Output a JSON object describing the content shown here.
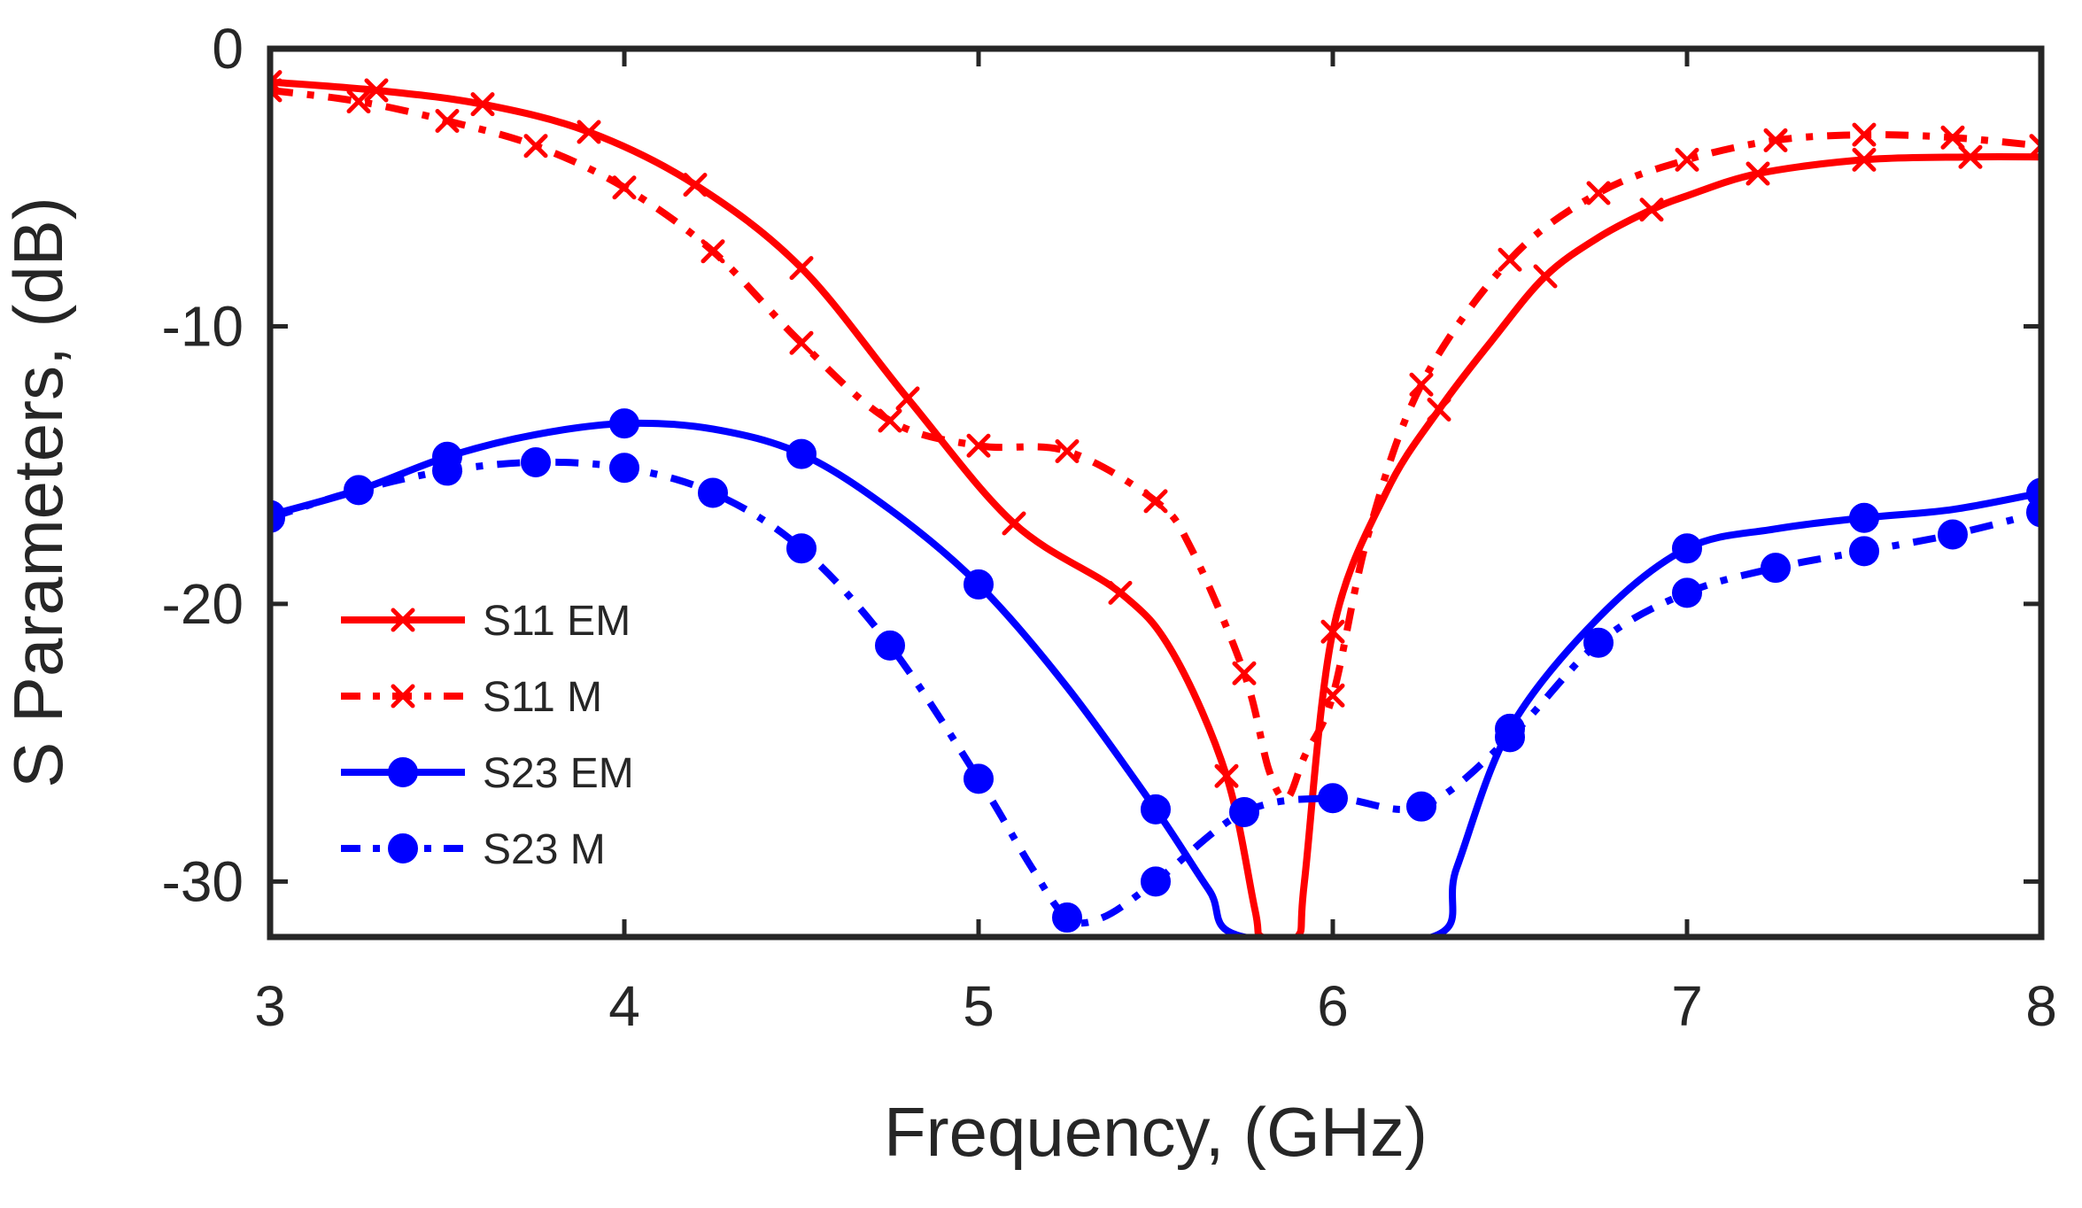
{
  "chart_data": {
    "type": "line",
    "xlabel": "Frequency, (GHz)",
    "ylabel": "S Parameters, (dB)",
    "xlim": [
      3,
      8
    ],
    "ylim": [
      -32,
      0
    ],
    "xticks": [
      3,
      4,
      5,
      6,
      7,
      8
    ],
    "yticks": [
      0,
      -10,
      -20,
      -30
    ],
    "grid": false,
    "legend_position": "lower-left",
    "colors": {
      "S11": "#ff0000",
      "S23": "#0000ff",
      "axis": "#262626"
    },
    "series": [
      {
        "name": "S11 EM",
        "color": "#ff0000",
        "line": "solid",
        "marker": "x",
        "curve": [
          [
            3.0,
            -1.2
          ],
          [
            3.3,
            -1.5
          ],
          [
            3.6,
            -2.0
          ],
          [
            3.9,
            -3.0
          ],
          [
            4.2,
            -4.9
          ],
          [
            4.5,
            -7.9
          ],
          [
            4.8,
            -12.6
          ],
          [
            5.1,
            -17.1
          ],
          [
            5.4,
            -19.6
          ],
          [
            5.55,
            -21.8
          ],
          [
            5.7,
            -26.2
          ],
          [
            5.78,
            -31.0
          ],
          [
            5.8,
            -32.0
          ],
          [
            5.9,
            -32.0
          ],
          [
            5.92,
            -30.0
          ],
          [
            6.0,
            -21.0
          ],
          [
            6.15,
            -16.0
          ],
          [
            6.3,
            -13.0
          ],
          [
            6.45,
            -10.5
          ],
          [
            6.6,
            -8.2
          ],
          [
            6.75,
            -6.8
          ],
          [
            6.9,
            -5.8
          ],
          [
            7.0,
            -5.3
          ],
          [
            7.2,
            -4.5
          ],
          [
            7.5,
            -4.0
          ],
          [
            7.8,
            -3.9
          ],
          [
            8.0,
            -3.9
          ]
        ],
        "markers": [
          [
            3.0,
            -1.2
          ],
          [
            3.3,
            -1.5
          ],
          [
            3.6,
            -2.0
          ],
          [
            3.9,
            -3.0
          ],
          [
            4.2,
            -4.9
          ],
          [
            4.5,
            -7.9
          ],
          [
            4.8,
            -12.6
          ],
          [
            5.1,
            -17.1
          ],
          [
            5.4,
            -19.6
          ],
          [
            5.7,
            -26.2
          ],
          [
            6.0,
            -21.0
          ],
          [
            6.3,
            -13.0
          ],
          [
            6.6,
            -8.2
          ],
          [
            6.9,
            -5.8
          ],
          [
            7.2,
            -4.5
          ],
          [
            7.5,
            -4.0
          ],
          [
            7.8,
            -3.9
          ]
        ]
      },
      {
        "name": "S11 M",
        "color": "#ff0000",
        "line": "dashdot",
        "marker": "x",
        "curve": [
          [
            3.0,
            -1.5
          ],
          [
            3.25,
            -1.9
          ],
          [
            3.5,
            -2.6
          ],
          [
            3.75,
            -3.5
          ],
          [
            4.0,
            -5.0
          ],
          [
            4.25,
            -7.3
          ],
          [
            4.5,
            -10.6
          ],
          [
            4.75,
            -13.4
          ],
          [
            5.0,
            -14.3
          ],
          [
            5.25,
            -14.5
          ],
          [
            5.5,
            -16.3
          ],
          [
            5.6,
            -18.0
          ],
          [
            5.75,
            -22.5
          ],
          [
            5.82,
            -26.0
          ],
          [
            5.87,
            -27.0
          ],
          [
            5.92,
            -25.5
          ],
          [
            6.0,
            -23.3
          ],
          [
            6.1,
            -17.5
          ],
          [
            6.25,
            -12.1
          ],
          [
            6.5,
            -7.6
          ],
          [
            6.75,
            -5.2
          ],
          [
            7.0,
            -4.0
          ],
          [
            7.25,
            -3.3
          ],
          [
            7.5,
            -3.1
          ],
          [
            7.75,
            -3.2
          ],
          [
            8.0,
            -3.5
          ]
        ],
        "markers": [
          [
            3.0,
            -1.5
          ],
          [
            3.25,
            -1.9
          ],
          [
            3.5,
            -2.6
          ],
          [
            3.75,
            -3.5
          ],
          [
            4.0,
            -5.0
          ],
          [
            4.25,
            -7.3
          ],
          [
            4.5,
            -10.6
          ],
          [
            4.75,
            -13.4
          ],
          [
            5.0,
            -14.3
          ],
          [
            5.25,
            -14.5
          ],
          [
            5.5,
            -16.3
          ],
          [
            5.75,
            -22.5
          ],
          [
            6.0,
            -23.3
          ],
          [
            6.25,
            -12.1
          ],
          [
            6.5,
            -7.6
          ],
          [
            6.75,
            -5.2
          ],
          [
            7.0,
            -4.0
          ],
          [
            7.25,
            -3.3
          ],
          [
            7.5,
            -3.1
          ],
          [
            7.75,
            -3.2
          ],
          [
            8.0,
            -3.5
          ]
        ]
      },
      {
        "name": "S23 EM",
        "color": "#0000ff",
        "line": "solid",
        "marker": "circle",
        "curve": [
          [
            3.0,
            -16.8
          ],
          [
            3.25,
            -15.9
          ],
          [
            3.5,
            -14.7
          ],
          [
            3.75,
            -13.9
          ],
          [
            4.0,
            -13.5
          ],
          [
            4.25,
            -13.7
          ],
          [
            4.5,
            -14.6
          ],
          [
            4.75,
            -16.6
          ],
          [
            5.0,
            -19.3
          ],
          [
            5.25,
            -23.0
          ],
          [
            5.5,
            -27.4
          ],
          [
            5.65,
            -30.3
          ],
          [
            5.75,
            -32.0
          ],
          [
            6.28,
            -32.0
          ],
          [
            6.35,
            -29.5
          ],
          [
            6.5,
            -24.5
          ],
          [
            6.75,
            -20.5
          ],
          [
            7.0,
            -18.0
          ],
          [
            7.25,
            -17.3
          ],
          [
            7.5,
            -16.9
          ],
          [
            7.75,
            -16.6
          ],
          [
            8.0,
            -16.0
          ]
        ],
        "markers": [
          [
            3.0,
            -16.8
          ],
          [
            3.5,
            -14.7
          ],
          [
            4.0,
            -13.5
          ],
          [
            4.5,
            -14.6
          ],
          [
            5.0,
            -19.3
          ],
          [
            5.5,
            -27.4
          ],
          [
            6.5,
            -24.5
          ],
          [
            7.0,
            -18.0
          ],
          [
            7.5,
            -16.9
          ],
          [
            8.0,
            -16.0
          ]
        ]
      },
      {
        "name": "S23 M",
        "color": "#0000ff",
        "line": "dashdot",
        "marker": "circle",
        "curve": [
          [
            3.0,
            -16.9
          ],
          [
            3.25,
            -15.9
          ],
          [
            3.5,
            -15.2
          ],
          [
            3.75,
            -14.9
          ],
          [
            4.0,
            -15.1
          ],
          [
            4.25,
            -16.0
          ],
          [
            4.5,
            -18.0
          ],
          [
            4.75,
            -21.5
          ],
          [
            5.0,
            -26.3
          ],
          [
            5.15,
            -29.5
          ],
          [
            5.25,
            -31.3
          ],
          [
            5.35,
            -31.3
          ],
          [
            5.5,
            -30.0
          ],
          [
            5.75,
            -27.5
          ],
          [
            6.0,
            -27.0
          ],
          [
            6.25,
            -27.3
          ],
          [
            6.5,
            -24.8
          ],
          [
            6.75,
            -21.4
          ],
          [
            7.0,
            -19.6
          ],
          [
            7.25,
            -18.7
          ],
          [
            7.5,
            -18.1
          ],
          [
            7.75,
            -17.5
          ],
          [
            8.0,
            -16.7
          ]
        ],
        "markers": [
          [
            3.0,
            -16.9
          ],
          [
            3.25,
            -15.9
          ],
          [
            3.5,
            -15.2
          ],
          [
            3.75,
            -14.9
          ],
          [
            4.0,
            -15.1
          ],
          [
            4.25,
            -16.0
          ],
          [
            4.5,
            -18.0
          ],
          [
            4.75,
            -21.5
          ],
          [
            5.0,
            -26.3
          ],
          [
            5.25,
            -31.3
          ],
          [
            5.5,
            -30.0
          ],
          [
            5.75,
            -27.5
          ],
          [
            6.0,
            -27.0
          ],
          [
            6.25,
            -27.3
          ],
          [
            6.5,
            -24.8
          ],
          [
            6.75,
            -21.4
          ],
          [
            7.0,
            -19.6
          ],
          [
            7.25,
            -18.7
          ],
          [
            7.5,
            -18.1
          ],
          [
            7.75,
            -17.5
          ],
          [
            8.0,
            -16.7
          ]
        ]
      }
    ]
  }
}
